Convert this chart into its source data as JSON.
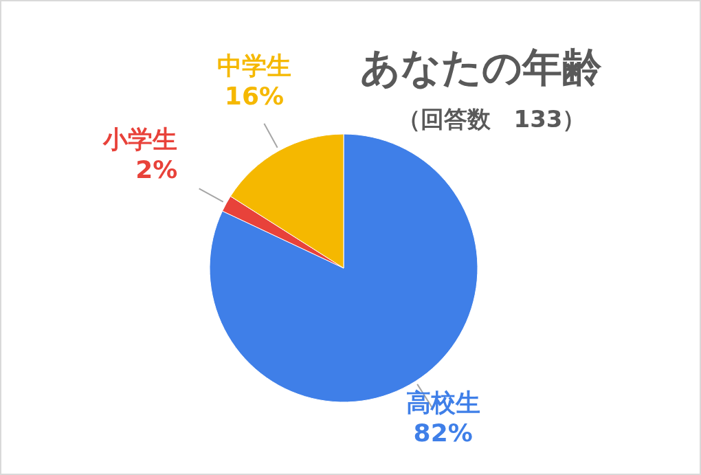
{
  "chart_data": {
    "type": "pie",
    "title": "あなたの年齢",
    "subtitle": "（回答数　133）",
    "categories": [
      "高校生",
      "小学生",
      "中学生"
    ],
    "values": [
      82,
      2,
      16
    ],
    "colors": [
      "#3f7fe8",
      "#e8423a",
      "#f5b800"
    ],
    "value_labels": [
      "82%",
      "2%",
      "16%"
    ],
    "legend": false
  }
}
